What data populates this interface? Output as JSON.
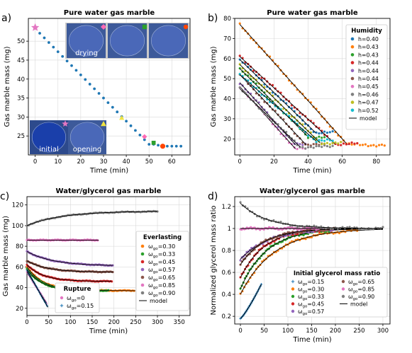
{
  "figure": {
    "panel_labels": [
      "a)",
      "b)",
      "c)",
      "d)"
    ],
    "colors": {
      "blue": "#1f77b4",
      "orange": "#ff7f0e",
      "green": "#2ca02c",
      "red": "#d62728",
      "purple": "#9467bd",
      "brown": "#8c564b",
      "pink": "#e377c2",
      "gray": "#7f7f7f",
      "olive": "#bcbd22",
      "cyan": "#17becf",
      "model": "#000000",
      "grid": "#d9d9d9"
    }
  },
  "chart_data": [
    {
      "id": "a",
      "type": "scatter",
      "title": "Pure water gas marble",
      "xlabel": "Time (min)",
      "ylabel": "Gas marble mass (mg)",
      "xlim": [
        -3,
        68
      ],
      "ylim": [
        20,
        56
      ],
      "xticks": [
        0,
        10,
        20,
        30,
        40,
        50,
        60
      ],
      "yticks": [
        25,
        30,
        35,
        40,
        45,
        50
      ],
      "grid": true,
      "series": [
        {
          "color": "#1f77b4",
          "x_start": 2,
          "x_end": 64,
          "x_step": 2,
          "y_rule": "53.3 - 0.61*t until t=50, then flattening to 22.3"
        }
      ],
      "highlight_points": [
        {
          "marker": "star",
          "color": "#e377c2",
          "x": 0,
          "y": 53.6
        },
        {
          "marker": "triangle",
          "color": "#f0e442",
          "x": 38,
          "y": 29.8
        },
        {
          "marker": "diamond",
          "color": "#ff69b4",
          "x": 48,
          "y": 24.8
        },
        {
          "marker": "square",
          "color": "#2ca02c",
          "x": 52,
          "y": 23.2
        },
        {
          "marker": "circle",
          "color": "#ff4500",
          "x": 56,
          "y": 22.3
        }
      ],
      "insets": [
        {
          "label": "drying",
          "photos": 3,
          "markers": [
            "diamond",
            "square",
            "circle"
          ]
        },
        {
          "label": "initial",
          "marker": "star"
        },
        {
          "label": "opening",
          "marker": "triangle"
        }
      ]
    },
    {
      "id": "b",
      "type": "scatter",
      "title": "Pure water gas marble",
      "xlabel": "Time (min)",
      "ylabel": "Gas marble mass (mg)",
      "xlim": [
        -3,
        88
      ],
      "ylim": [
        12,
        80
      ],
      "xticks": [
        0,
        20,
        40,
        60,
        80
      ],
      "yticks": [
        20,
        30,
        40,
        50,
        60,
        70,
        80
      ],
      "grid": true,
      "legend": {
        "title": "Humidity",
        "placement": "top-right"
      },
      "series": [
        {
          "name": "h=0.40",
          "color": "#1f77b4",
          "m0": 59.5,
          "slope": 0.82,
          "floor": 23.0,
          "t_end": 55
        },
        {
          "name": "h=0.43",
          "color": "#ff7f0e",
          "m0": 77.0,
          "slope": 0.95,
          "floor": 17.0,
          "t_end": 85
        },
        {
          "name": "h=0.43",
          "color": "#2ca02c",
          "m0": 55.0,
          "slope": 0.85,
          "floor": 21.0,
          "t_end": 50
        },
        {
          "name": "h=0.44",
          "color": "#d62728",
          "m0": 61.0,
          "slope": 0.78,
          "floor": 17.5,
          "t_end": 70
        },
        {
          "name": "h=0.44",
          "color": "#9467bd",
          "m0": 48.0,
          "slope": 0.95,
          "floor": 17.0,
          "t_end": 40
        },
        {
          "name": "h=0.44",
          "color": "#8c564b",
          "m0": 52.0,
          "slope": 0.9,
          "floor": 17.0,
          "t_end": 50
        },
        {
          "name": "h=0.45",
          "color": "#e377c2",
          "m0": 46.0,
          "slope": 0.95,
          "floor": 15.0,
          "t_end": 40
        },
        {
          "name": "h=0.46",
          "color": "#7f7f7f",
          "m0": 45.0,
          "slope": 0.82,
          "floor": 16.0,
          "t_end": 55
        },
        {
          "name": "h=0.47",
          "color": "#bcbd22",
          "m0": 57.0,
          "slope": 0.83,
          "floor": 18.0,
          "t_end": 60
        },
        {
          "name": "h=0.52",
          "color": "#17becf",
          "m0": 52.0,
          "slope": 0.74,
          "floor": 19.0,
          "t_end": 55
        }
      ],
      "model_label": "model"
    },
    {
      "id": "c",
      "type": "scatter",
      "title": "Water/glycerol gas marble",
      "xlabel": "Time (min)",
      "ylabel": "Gas marble mass (mg)",
      "xlim": [
        0,
        375
      ],
      "ylim": [
        13,
        128
      ],
      "xticks": [
        0,
        50,
        100,
        150,
        200,
        250,
        300,
        350
      ],
      "yticks": [
        20,
        40,
        60,
        80,
        100,
        120
      ],
      "grid": true,
      "legend": {
        "title": "Everlasting",
        "placement": "center-right"
      },
      "legend2": {
        "title": "Rupture",
        "placement": "bottom-left"
      },
      "series": [
        {
          "name": "ω_go=0.30",
          "color": "#ff7f0e",
          "m0": 60,
          "m_inf": 37,
          "tau": 38,
          "t_end": 250
        },
        {
          "name": "ω_go=0.33",
          "color": "#2ca02c",
          "m0": 58,
          "m_inf": 37,
          "tau": 35,
          "t_end": 190
        },
        {
          "name": "ω_go=0.45",
          "color": "#d62728",
          "m0": 62,
          "m_inf": 46,
          "tau": 38,
          "t_end": 195
        },
        {
          "name": "ω_go=0.57",
          "color": "#9467bd",
          "m0": 75,
          "m_inf": 61,
          "tau": 60,
          "t_end": 200
        },
        {
          "name": "ω_go=0.65",
          "color": "#8c564b",
          "m0": 66,
          "m_inf": 55,
          "tau": 45,
          "t_end": 200
        },
        {
          "name": "ω_go=0.85",
          "color": "#e377c2",
          "m0": 86,
          "m_inf": 86,
          "tau": 100,
          "t_end": 165
        },
        {
          "name": "ω_go=0.90",
          "color": "#7f7f7f",
          "m0": 100,
          "m_inf": 114,
          "tau": 80,
          "t_end": 300
        }
      ],
      "rupture_series": [
        {
          "name": "ω_go=0",
          "color": "#e377c2",
          "m0": 55,
          "m_end": 25,
          "t_end": 45
        },
        {
          "name": "ω_go=0.15",
          "color": "#1f77b4",
          "m0": 57,
          "m_end": 21,
          "t_end": 48
        }
      ],
      "model_label": "model"
    },
    {
      "id": "d",
      "type": "scatter",
      "title": "Water/glycerol gas marble",
      "xlabel": "Time (min)",
      "ylabel": "Normalized glycerol mass ratio",
      "xlim": [
        -12,
        315
      ],
      "ylim": [
        0.13,
        1.29
      ],
      "xticks": [
        0,
        50,
        100,
        150,
        200,
        250,
        300
      ],
      "yticks": [
        0.2,
        0.4,
        0.6,
        0.8,
        1.0,
        1.2
      ],
      "grid": true,
      "legend": {
        "title": "Initial glycerol mass ratio",
        "placement": "bottom-right"
      },
      "series": [
        {
          "name": "ω_go=0.15",
          "color": "#1f77b4",
          "marker": "plus",
          "r0": 0.18,
          "r_end": 0.5,
          "t_end": 45
        },
        {
          "name": "ω_go=0.30",
          "color": "#ff7f0e",
          "r0": 0.4,
          "tau": 70,
          "t_end": 250
        },
        {
          "name": "ω_go=0.33",
          "color": "#2ca02c",
          "r0": 0.45,
          "tau": 55,
          "t_end": 190
        },
        {
          "name": "ω_go=0.45",
          "color": "#d62728",
          "r0": 0.55,
          "tau": 50,
          "t_end": 195
        },
        {
          "name": "ω_go=0.57",
          "color": "#9467bd",
          "r0": 0.72,
          "tau": 60,
          "t_end": 200
        },
        {
          "name": "ω_go=0.65",
          "color": "#8c564b",
          "r0": 0.67,
          "tau": 50,
          "t_end": 200
        },
        {
          "name": "ω_go=0.85",
          "color": "#e377c2",
          "r0": 1.0,
          "tau": 80,
          "t_end": 165
        },
        {
          "name": "ω_go=0.90",
          "color": "#7f7f7f",
          "r0": 1.23,
          "tau": 55,
          "t_end": 300
        }
      ],
      "model_label": "model"
    }
  ]
}
